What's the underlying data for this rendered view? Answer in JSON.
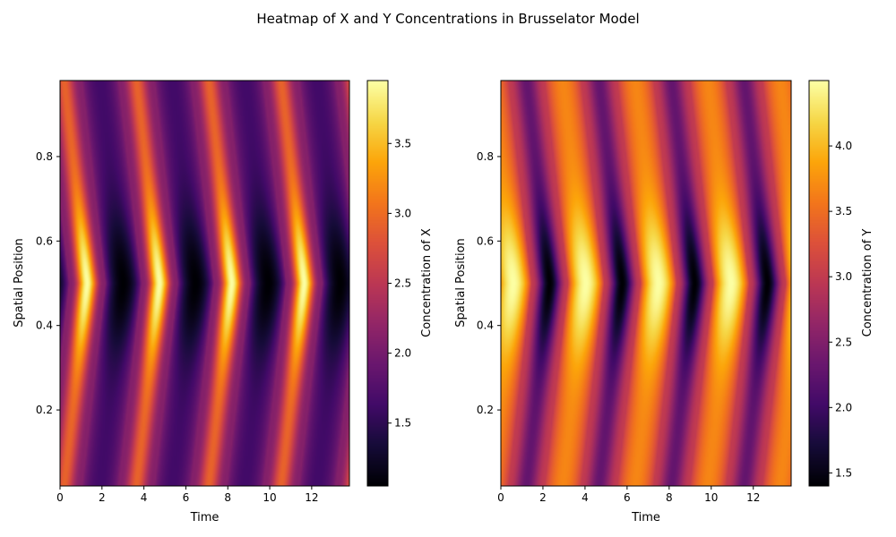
{
  "figure": {
    "suptitle": "Heatmap of X and Y Concentrations in Brusselator Model"
  },
  "chart_data": [
    {
      "type": "heatmap",
      "title": "",
      "xlabel": "Time",
      "ylabel": "Spatial Position",
      "xlim": [
        0,
        13.8
      ],
      "ylim": [
        0.02,
        0.98
      ],
      "xticks": [
        0,
        2,
        4,
        6,
        8,
        10,
        12
      ],
      "yticks": [
        0.2,
        0.4,
        0.6,
        0.8
      ],
      "colormap": "inferno",
      "colorbar": {
        "label": "Concentration of X",
        "range": [
          1.05,
          3.95
        ],
        "ticks": [
          1.5,
          2.0,
          2.5,
          3.0,
          3.5
        ]
      },
      "field": {
        "description_of_pattern": "peak values along center (y=0.5) at t approximately",
        "peak_times": [
          1.3,
          4.8,
          8.2,
          11.6
        ],
        "trough_times": [
          3.4,
          6.9,
          10.4,
          13.8
        ],
        "peak_value": 3.95,
        "trough_value": 1.05,
        "edge_value": 2.1
      }
    },
    {
      "type": "heatmap",
      "title": "",
      "xlabel": "Time",
      "ylabel": "Spatial Position",
      "xlim": [
        0,
        13.8
      ],
      "ylim": [
        0.02,
        0.98
      ],
      "xticks": [
        0,
        2,
        4,
        6,
        8,
        10,
        12
      ],
      "yticks": [
        0.2,
        0.4,
        0.6,
        0.8
      ],
      "colormap": "inferno",
      "colorbar": {
        "label": "Concentration of Y",
        "range": [
          1.4,
          4.5
        ],
        "ticks": [
          1.5,
          2.0,
          2.5,
          3.0,
          3.5,
          4.0
        ]
      },
      "field": {
        "peak_times": [
          0.6,
          4.1,
          7.6,
          11.0
        ],
        "trough_times": [
          1.8,
          5.2,
          8.6,
          12.1
        ],
        "peak_value": 4.5,
        "trough_value": 1.4,
        "edge_value": 3.0
      }
    }
  ]
}
